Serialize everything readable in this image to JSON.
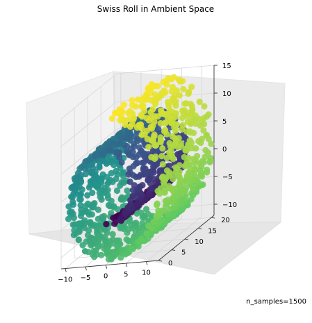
{
  "chart_data": {
    "type": "scatter",
    "projection": "3d",
    "title": "Swiss Roll in Ambient Space",
    "annotation": "n_samples=1500",
    "colormap": "viridis",
    "colormap_stops": [
      "#440154",
      "#3b528b",
      "#21918c",
      "#5ec962",
      "#fde725"
    ],
    "grid": true,
    "axes": {
      "x": {
        "ticks": [
          -10,
          -5,
          0,
          5,
          10
        ],
        "range": [
          -11,
          13
        ]
      },
      "y": {
        "ticks": [
          0,
          5,
          10,
          15,
          20
        ],
        "range": [
          0,
          21
        ]
      },
      "z": {
        "ticks": [
          -10,
          -5,
          0,
          5,
          10,
          15
        ],
        "range": [
          -12,
          15
        ]
      }
    },
    "roll": {
      "t_min": 4.71,
      "t_max": 14.14,
      "depth_range": [
        0,
        21
      ]
    },
    "n_points": 1500
  }
}
